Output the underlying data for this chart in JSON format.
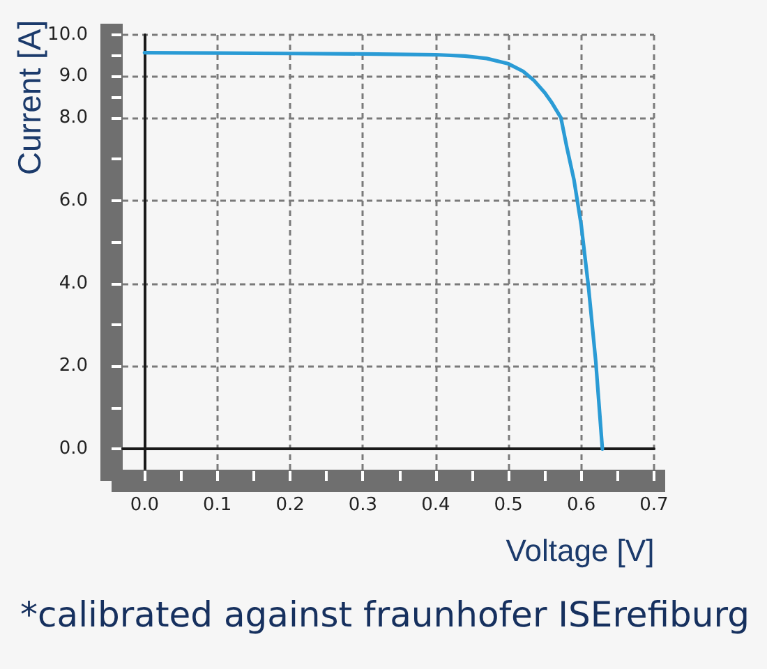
{
  "chart_data": {
    "type": "line",
    "xlabel": "Voltage [V]",
    "ylabel": "Current [A]",
    "x": [
      0,
      0.1,
      0.2,
      0.3,
      0.4,
      0.44,
      0.47,
      0.5,
      0.52,
      0.535,
      0.55,
      0.56,
      0.572,
      0.58,
      0.59,
      0.6,
      0.61,
      0.62,
      0.629
    ],
    "values": [
      9.57,
      9.56,
      9.55,
      9.54,
      9.52,
      9.49,
      9.43,
      9.3,
      9.12,
      8.9,
      8.6,
      8.35,
      8.0,
      7.3,
      6.5,
      5.4,
      3.9,
      2.1,
      0
    ],
    "color": "#2a9bd5",
    "xlim": [
      -0.03,
      0.7
    ],
    "ylim": [
      -0.5,
      10
    ],
    "xticks": [
      {
        "value": 0,
        "label": "0.0"
      },
      {
        "value": 0.05,
        "label": null
      },
      0.1,
      {
        "value": 0.15,
        "label": null
      },
      0.2,
      {
        "value": 0.25,
        "label": null
      },
      0.3,
      {
        "value": 0.35,
        "label": null
      },
      0.4,
      {
        "value": 0.45,
        "label": null
      },
      0.5,
      {
        "value": 0.55,
        "label": null
      },
      0.6,
      {
        "value": 0.65,
        "label": null
      },
      0.7
    ],
    "yticks": [
      {
        "value": 0,
        "label": "0.0"
      },
      {
        "value": 1,
        "label": null
      },
      {
        "value": 2,
        "label": "2.0"
      },
      {
        "value": 3,
        "label": null
      },
      {
        "value": 4,
        "label": "4.0"
      },
      {
        "value": 5,
        "label": null
      },
      {
        "value": 6,
        "label": "6.0"
      },
      {
        "value": 7,
        "label": null
      },
      {
        "value": 8,
        "label": "8.0"
      },
      {
        "value": 8.5,
        "label": null
      },
      {
        "value": 9,
        "label": "9.0"
      },
      {
        "value": 9.5,
        "label": null
      },
      {
        "value": 10,
        "label": "10.0"
      }
    ],
    "grid": true,
    "annotations": [
      "*calibrated against fraunhofer ISErefiburg"
    ]
  }
}
